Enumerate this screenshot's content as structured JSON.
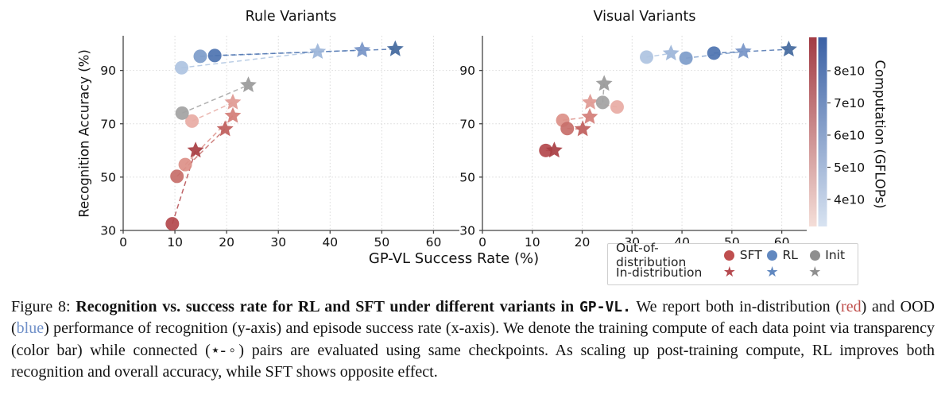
{
  "figure": {
    "xlabel": "GP-VL Success Rate (%)",
    "ylabel": "Recognition Accuracy (%)"
  },
  "chart_data": [
    {
      "type": "scatter",
      "title": "Rule Variants",
      "xlim": [
        0,
        65
      ],
      "ylim": [
        30,
        103
      ],
      "xticks": [
        0,
        10,
        20,
        30,
        40,
        50,
        60
      ],
      "yticks": [
        30,
        50,
        70,
        90
      ],
      "grid": true,
      "series": [
        {
          "name": "SFT out-of-distribution",
          "marker": "circle",
          "colors": [
            "#e8aca5",
            "#dd9189",
            "#c76f6b",
            "#b4494e"
          ],
          "points": [
            [
              13.3,
              71.0
            ],
            [
              12.0,
              54.7
            ],
            [
              10.4,
              50.3
            ],
            [
              9.5,
              32.5
            ]
          ]
        },
        {
          "name": "SFT in-distribution",
          "marker": "star",
          "colors": [
            "#e09a93",
            "#d47e79",
            "#c05f5d",
            "#a93e44"
          ],
          "points": [
            [
              21.2,
              78.0
            ],
            [
              21.2,
              73.0
            ],
            [
              19.7,
              68.0
            ],
            [
              14.0,
              60.0
            ]
          ]
        },
        {
          "name": "RL out-of-distribution",
          "marker": "circle",
          "colors": [
            "#aec4e1",
            "#7e9dca",
            "#4f74b0"
          ],
          "points": [
            [
              11.3,
              91.0
            ],
            [
              14.9,
              95.3
            ],
            [
              17.7,
              95.6
            ]
          ]
        },
        {
          "name": "RL in-distribution",
          "marker": "star",
          "colors": [
            "#9db6d9",
            "#7795c7",
            "#44699e"
          ],
          "points": [
            [
              37.6,
              97.0
            ],
            [
              46.2,
              97.6
            ],
            [
              52.6,
              98.0
            ]
          ]
        },
        {
          "name": "Init out-of-distribution",
          "marker": "circle",
          "colors": [
            "#a2a2a2"
          ],
          "points": [
            [
              11.4,
              74.0
            ]
          ]
        },
        {
          "name": "Init in-distribution",
          "marker": "star",
          "colors": [
            "#9a9a9a"
          ],
          "points": [
            [
              24.2,
              84.5
            ]
          ]
        }
      ],
      "connections": [
        {
          "a": [
            0,
            0
          ],
          "b": [
            1,
            0
          ]
        },
        {
          "a": [
            0,
            1
          ],
          "b": [
            1,
            1
          ]
        },
        {
          "a": [
            0,
            2
          ],
          "b": [
            1,
            2
          ]
        },
        {
          "a": [
            0,
            3
          ],
          "b": [
            1,
            3
          ]
        },
        {
          "a": [
            2,
            0
          ],
          "b": [
            3,
            0
          ]
        },
        {
          "a": [
            2,
            1
          ],
          "b": [
            3,
            1
          ]
        },
        {
          "a": [
            2,
            2
          ],
          "b": [
            3,
            2
          ]
        },
        {
          "a": [
            4,
            0
          ],
          "b": [
            5,
            0
          ]
        }
      ]
    },
    {
      "type": "scatter",
      "title": "Visual Variants",
      "xlim": [
        0,
        65
      ],
      "ylim": [
        30,
        103
      ],
      "xticks": [
        0,
        10,
        20,
        30,
        40,
        50,
        60
      ],
      "yticks": [
        30,
        50,
        70,
        90
      ],
      "grid": true,
      "series": [
        {
          "name": "SFT out-of-distribution",
          "marker": "circle",
          "colors": [
            "#e8aca5",
            "#dd9189",
            "#c76f6b",
            "#b4494e"
          ],
          "points": [
            [
              27.0,
              76.3
            ],
            [
              16.1,
              71.3
            ],
            [
              17.0,
              68.2
            ],
            [
              12.7,
              60.0
            ]
          ]
        },
        {
          "name": "SFT in-distribution",
          "marker": "star",
          "colors": [
            "#e09a93",
            "#d47e79",
            "#c05f5d",
            "#a93e44"
          ],
          "points": [
            [
              21.6,
              78.0
            ],
            [
              21.5,
              72.6
            ],
            [
              20.1,
              68.0
            ],
            [
              14.4,
              60.0
            ]
          ]
        },
        {
          "name": "RL out-of-distribution",
          "marker": "circle",
          "colors": [
            "#aec4e1",
            "#7e9dca",
            "#4f74b0"
          ],
          "points": [
            [
              32.9,
              95.0
            ],
            [
              40.8,
              94.6
            ],
            [
              46.4,
              96.5
            ]
          ]
        },
        {
          "name": "RL in-distribution",
          "marker": "star",
          "colors": [
            "#9db6d9",
            "#7795c7",
            "#44699e"
          ],
          "points": [
            [
              37.8,
              96.4
            ],
            [
              52.3,
              97.1
            ],
            [
              61.4,
              97.9
            ]
          ]
        },
        {
          "name": "Init out-of-distribution",
          "marker": "circle",
          "colors": [
            "#a2a2a2"
          ],
          "points": [
            [
              24.1,
              78.0
            ]
          ]
        },
        {
          "name": "Init in-distribution",
          "marker": "star",
          "colors": [
            "#9a9a9a"
          ],
          "points": [
            [
              24.4,
              85.0
            ]
          ]
        }
      ],
      "connections": [
        {
          "a": [
            0,
            0
          ],
          "b": [
            1,
            0
          ]
        },
        {
          "a": [
            0,
            1
          ],
          "b": [
            1,
            1
          ]
        },
        {
          "a": [
            0,
            2
          ],
          "b": [
            1,
            2
          ]
        },
        {
          "a": [
            0,
            3
          ],
          "b": [
            1,
            3
          ]
        },
        {
          "a": [
            2,
            0
          ],
          "b": [
            3,
            0
          ]
        },
        {
          "a": [
            2,
            1
          ],
          "b": [
            3,
            1
          ]
        },
        {
          "a": [
            2,
            2
          ],
          "b": [
            3,
            2
          ]
        },
        {
          "a": [
            4,
            0
          ],
          "b": [
            5,
            0
          ]
        }
      ]
    }
  ],
  "colorbar": {
    "title": "Computation (GFLOPs)",
    "ticks": [
      "8e10",
      "7e10",
      "6e10",
      "5e10",
      "4e10"
    ],
    "red_top": "#a23b44",
    "red_bottom": "#f4ded8",
    "blue_top": "#3b61a5",
    "blue_bottom": "#d8e3f1"
  },
  "legend": {
    "rows": [
      {
        "label": "Out-of-distribution",
        "marker": "circle",
        "entries": [
          {
            "label": "SFT",
            "color": "#bf4f4f"
          },
          {
            "label": "RL",
            "color": "#6188c0"
          },
          {
            "label": "Init",
            "color": "#8f8f8f"
          }
        ]
      },
      {
        "label": "In-distribution",
        "marker": "star",
        "entries": [
          {
            "label": "",
            "color": "#b5494f"
          },
          {
            "label": "",
            "color": "#6188c0"
          },
          {
            "label": "",
            "color": "#8f8f8f"
          }
        ]
      }
    ]
  },
  "caption": {
    "prefix": "Figure 8:  ",
    "bold1": "Recognition vs. success rate for RL and SFT under different variants in ",
    "mono_bold": "GP-VL.",
    "seg1": " We report both in-distribution (",
    "red_word": "red",
    "red_color": "#c0504d",
    "seg2": ") and OOD (",
    "blue_word": "blue",
    "blue_color": "#7191c9",
    "seg3": ") performance of recognition (y-axis) and episode success rate (x-axis). We denote the training compute of each data point via transparency (color bar) while connected (",
    "star_circle": "⋆-◦",
    "seg4": ") pairs are evaluated using same checkpoints. As scaling up post-training compute, RL improves both recognition and overall accuracy, while SFT shows opposite effect."
  }
}
